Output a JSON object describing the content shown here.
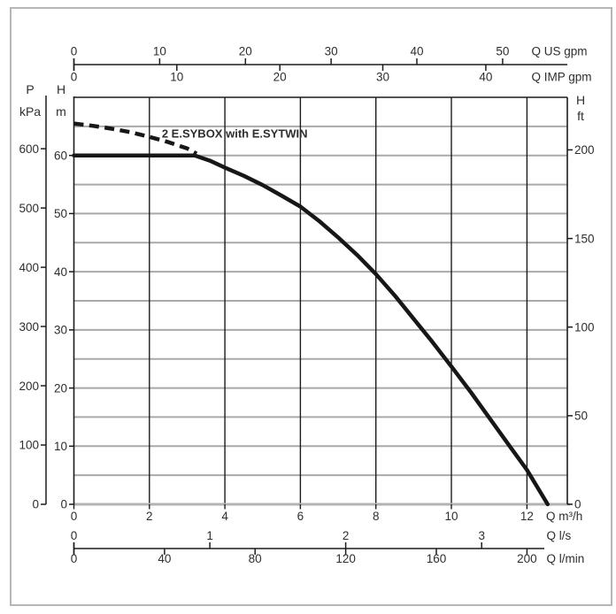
{
  "window": {
    "bg": "#ffffff",
    "border_color": "#b6b6b6"
  },
  "chart_data": {
    "type": "line",
    "text_color": "#2e2e2e",
    "q_range_m3h": [
      0,
      13.07
    ],
    "h_range_m": [
      0,
      70
    ],
    "grid": {
      "h_step_m": 5,
      "v_step_m3h": 2,
      "h_color": "#a9a9a9",
      "v_color": "#1c1c1c",
      "baseline_color": "#b3b3b3"
    },
    "annotation": {
      "text": "2 E.SYBOX with E.SYTWIN",
      "q": 4.26,
      "h": 63.8
    },
    "series": [
      {
        "name": "solid-curve",
        "style": "solid",
        "color": "#171717",
        "width": 4.5,
        "points": [
          [
            0,
            60
          ],
          [
            3.2,
            60
          ],
          [
            3.6,
            59.1
          ],
          [
            4,
            57.9
          ],
          [
            4.5,
            56.5
          ],
          [
            5,
            54.9
          ],
          [
            5.5,
            53.1
          ],
          [
            6,
            51.2
          ],
          [
            6.5,
            48.7
          ],
          [
            7,
            45.9
          ],
          [
            7.5,
            42.9
          ],
          [
            8,
            39.6
          ],
          [
            8.5,
            35.9
          ],
          [
            9,
            31.9
          ],
          [
            9.5,
            27.9
          ],
          [
            10,
            23.7
          ],
          [
            10.5,
            19.4
          ],
          [
            11,
            14.9
          ],
          [
            11.5,
            10.4
          ],
          [
            12,
            5.9
          ],
          [
            12.55,
            0
          ]
        ]
      },
      {
        "name": "dashed-curve",
        "style": "dashed",
        "color": "#171717",
        "width": 4.5,
        "points": [
          [
            0,
            65.5
          ],
          [
            0.5,
            65.1
          ],
          [
            1,
            64.6
          ],
          [
            1.5,
            64.0
          ],
          [
            2,
            63.2
          ],
          [
            2.5,
            62.3
          ],
          [
            3,
            61.2
          ],
          [
            3.25,
            60.3
          ]
        ]
      }
    ],
    "axes": {
      "top": [
        {
          "id": "q-us-gpm",
          "label": "Q US gpm",
          "unit_per_m3h": 4.40287,
          "ticks": [
            0,
            10,
            20,
            30,
            40,
            50
          ],
          "tick_side": "above"
        },
        {
          "id": "q-imp-gpm",
          "label": "Q IMP gpm",
          "unit_per_m3h": 3.66615,
          "ticks": [
            0,
            10,
            20,
            30,
            40
          ],
          "tick_side": "below"
        }
      ],
      "bottom_main": {
        "id": "q-m3h",
        "label": "Q m³/h",
        "ticks": [
          0,
          2,
          4,
          6,
          8,
          10,
          12
        ]
      },
      "bottom_secondary": [
        {
          "id": "q-ls",
          "label": "Q l/s",
          "unit_per_m3h": 0.27778,
          "ticks": [
            0,
            1,
            2,
            3
          ],
          "tick_side": "above"
        },
        {
          "id": "q-lmin",
          "label": "Q l/min",
          "unit_per_m3h": 16.6667,
          "ticks": [
            0,
            40,
            80,
            120,
            160,
            200
          ],
          "tick_side": "below"
        }
      ],
      "left": [
        {
          "id": "p-kpa",
          "header": [
            "P",
            "kPa"
          ],
          "unit_per_m": 9.81,
          "ticks": [
            0,
            100,
            200,
            300,
            400,
            500,
            600
          ]
        },
        {
          "id": "h-m",
          "header": [
            "H",
            "m"
          ],
          "unit_per_m": 1,
          "ticks": [
            0,
            10,
            20,
            30,
            40,
            50,
            60
          ]
        }
      ],
      "right": {
        "id": "h-ft",
        "header": [
          "H",
          "ft"
        ],
        "unit_per_m": 3.28084,
        "ticks": [
          0,
          50,
          100,
          150,
          200
        ]
      }
    }
  }
}
